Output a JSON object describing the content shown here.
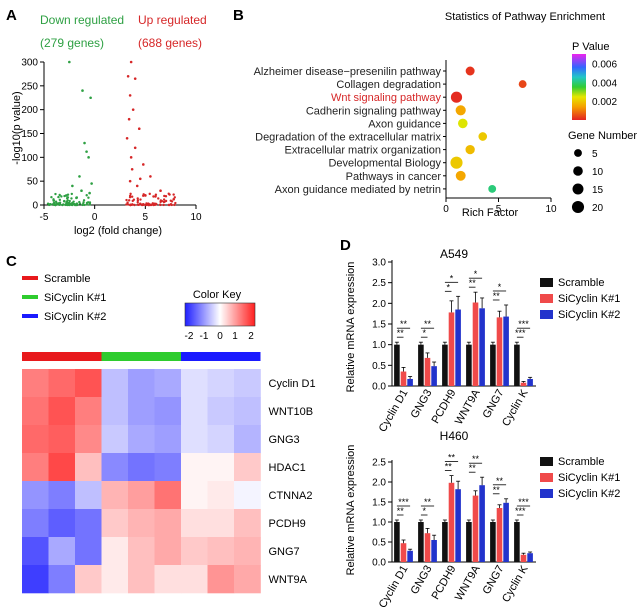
{
  "panels": {
    "A": {
      "letter": "A",
      "down_label": "Down regulated",
      "down_count": "(279 genes)",
      "up_label": "Up regulated",
      "up_count": "(688 genes)",
      "xlabel": "log2 (fold change)",
      "ylabel": "-log10(p value)",
      "colors": {
        "down": "#2ea043",
        "up": "#d62728"
      }
    },
    "B": {
      "letter": "B",
      "title": "Statistics of Pathway Enrichment",
      "xlabel": "Rich Factor",
      "pvalue_title": "P Value",
      "gene_title": "Gene Number",
      "highlight_color": "#d62728"
    },
    "C": {
      "letter": "C",
      "legend": [
        "Scramble",
        "SiCyclin K#1",
        "SiCyclin K#2"
      ],
      "legend_colors": [
        "#e8191c",
        "#2ecc2e",
        "#1a1aff"
      ],
      "colorkey_title": "Color Key",
      "colorkey_ticks": [
        "-2",
        "-1",
        "0",
        "1",
        "2"
      ]
    },
    "D": {
      "letter": "D",
      "legend": [
        "Scramble",
        "SiCyclin K#1",
        "SiCyclin K#2"
      ],
      "legend_colors": [
        "#111111",
        "#f04a4a",
        "#2233cc"
      ],
      "ylabel": "Relative mRNA expression"
    }
  },
  "chart_data": [
    {
      "id": "volcano",
      "type": "scatter",
      "title": "",
      "xlabel": "log2 (fold change)",
      "ylabel": "-log10(p value)",
      "xlim": [
        -5,
        10
      ],
      "ylim": [
        0,
        300
      ],
      "xticks": [
        "-5",
        "0",
        "5",
        "10"
      ],
      "yticks": [
        "0",
        "50",
        "100",
        "150",
        "200",
        "250",
        "300"
      ],
      "series": [
        {
          "name": "Down regulated",
          "color": "#2ea043",
          "points": [
            [
              -2.5,
              300
            ],
            [
              -1.2,
              240
            ],
            [
              -0.4,
              225
            ],
            [
              -1.0,
              130
            ],
            [
              -0.8,
              112
            ],
            [
              -0.6,
              100
            ],
            [
              -1.5,
              60
            ],
            [
              -2.2,
              40
            ],
            [
              -0.5,
              25
            ],
            [
              -1.8,
              15
            ],
            [
              -3.0,
              8
            ],
            [
              -4.0,
              4
            ],
            [
              -0.3,
              45
            ],
            [
              -2.8,
              20
            ],
            [
              -1.3,
              30
            ]
          ]
        },
        {
          "name": "Up regulated",
          "color": "#d62728",
          "points": [
            [
              3.6,
              300
            ],
            [
              3.3,
              270
            ],
            [
              4.0,
              265
            ],
            [
              3.5,
              230
            ],
            [
              3.8,
              200
            ],
            [
              3.4,
              180
            ],
            [
              4.4,
              160
            ],
            [
              3.2,
              140
            ],
            [
              4.0,
              120
            ],
            [
              3.6,
              100
            ],
            [
              4.8,
              85
            ],
            [
              5.5,
              60
            ],
            [
              3.5,
              50
            ],
            [
              6.5,
              30
            ],
            [
              4.2,
              40
            ],
            [
              7.8,
              12
            ],
            [
              5.0,
              20
            ],
            [
              3.7,
              75
            ],
            [
              4.5,
              55
            ],
            [
              6.0,
              18
            ]
          ]
        }
      ]
    },
    {
      "id": "enrichment",
      "type": "scatter",
      "title": "Statistics of Pathway Enrichment",
      "xlabel": "Rich Factor",
      "xlim": [
        0,
        10
      ],
      "xticks": [
        "0",
        "5",
        "10"
      ],
      "categories": [
        "Alzheimer disease−presenilin pathway",
        "Collagen degradation",
        "Wnt signaling pathway",
        "Cadherin signaling pathway",
        "Axon guidance",
        "Degradation of the extracellular matrix",
        "Extracellular matrix organization",
        "Developmental Biology",
        "Pathways in cancer",
        "Axon guidance mediated by netrin"
      ],
      "highlight": "Wnt signaling pathway",
      "rich_factor": [
        2.3,
        7.3,
        1.0,
        1.4,
        1.6,
        3.5,
        2.3,
        1.0,
        1.4,
        4.4
      ],
      "gene_number": [
        8,
        5,
        16,
        12,
        10,
        7,
        9,
        20,
        11,
        5
      ],
      "p_value": [
        0.0002,
        0.0004,
        0.0001,
        0.0015,
        0.0025,
        0.002,
        0.0018,
        0.002,
        0.0015,
        0.004
      ],
      "pvalue_ticks": [
        "0.006",
        "0.004",
        "0.002"
      ],
      "gene_ticks": [
        "5",
        "10",
        "15",
        "20"
      ]
    },
    {
      "id": "heatmap",
      "type": "heatmap",
      "rows": [
        "Cyclin D1",
        "WNT10B",
        "GNG3",
        "HDAC1",
        "CTNNA2",
        "PCDH9",
        "GNG7",
        "WNT9A"
      ],
      "groups": [
        "Scramble",
        "SiCyclin K#1",
        "SiCyclin K#2"
      ],
      "values": [
        [
          1.2,
          1.4,
          1.6,
          -0.6,
          -0.9,
          -0.8,
          -0.3,
          -0.4,
          -0.5
        ],
        [
          1.3,
          1.6,
          1.2,
          -0.6,
          -0.9,
          -1.0,
          -0.3,
          -0.5,
          -0.6
        ],
        [
          1.4,
          1.5,
          1.1,
          -0.5,
          -0.8,
          -0.9,
          -0.3,
          -0.4,
          -0.7
        ],
        [
          1.2,
          1.7,
          0.6,
          -1.1,
          -1.3,
          -1.2,
          0.1,
          0.1,
          0.5
        ],
        [
          -1.0,
          -1.2,
          -0.6,
          0.7,
          0.9,
          1.3,
          0.1,
          0.2,
          -0.1
        ],
        [
          -1.2,
          -1.5,
          -1.3,
          0.5,
          0.7,
          0.8,
          0.3,
          0.3,
          0.6
        ],
        [
          -1.6,
          -0.8,
          -1.3,
          0.2,
          0.6,
          0.8,
          0.5,
          0.6,
          0.7
        ],
        [
          -1.8,
          -1.2,
          0.5,
          0.2,
          0.6,
          0.3,
          0.3,
          1.0,
          0.8
        ]
      ]
    },
    {
      "id": "qpcr_a549",
      "type": "bar",
      "title": "A549",
      "ylabel": "Relative mRNA expression",
      "ylim": [
        0,
        3.0
      ],
      "yticks": [
        "0.0",
        "0.5",
        "1.0",
        "1.5",
        "2.0",
        "2.5",
        "3.0"
      ],
      "categories": [
        "Cyclin D1",
        "GNG3",
        "PCDH9",
        "WNT9A",
        "GNG7",
        "Cyclin K"
      ],
      "series": [
        {
          "name": "Scramble",
          "values": [
            1.0,
            1.0,
            1.0,
            1.0,
            1.0,
            1.0
          ],
          "errors": [
            0.06,
            0.06,
            0.06,
            0.06,
            0.06,
            0.06
          ]
        },
        {
          "name": "SiCyclin K#1",
          "values": [
            0.35,
            0.68,
            1.78,
            2.02,
            1.66,
            0.08
          ],
          "errors": [
            0.1,
            0.12,
            0.28,
            0.25,
            0.15,
            0.03
          ]
        },
        {
          "name": "SiCyclin K#2",
          "values": [
            0.17,
            0.48,
            1.85,
            1.88,
            1.68,
            0.17
          ],
          "errors": [
            0.06,
            0.1,
            0.32,
            0.25,
            0.28,
            0.04
          ]
        }
      ],
      "significance": [
        [
          "**",
          "**"
        ],
        [
          "*",
          "**"
        ],
        [
          "*",
          "*"
        ],
        [
          "**",
          "*"
        ],
        [
          "**",
          "*"
        ],
        [
          "***",
          "***"
        ]
      ]
    },
    {
      "id": "qpcr_h460",
      "type": "bar",
      "title": "H460",
      "ylabel": "Relative mRNA expression",
      "ylim": [
        0,
        2.5
      ],
      "yticks": [
        "0.0",
        "0.5",
        "1.0",
        "1.5",
        "2.0",
        "2.5"
      ],
      "categories": [
        "Cyclin D1",
        "GNG3",
        "PCDH9",
        "WNT9A",
        "GNG7",
        "Cyclin K"
      ],
      "series": [
        {
          "name": "Scramble",
          "values": [
            1.0,
            1.0,
            1.0,
            1.0,
            1.0,
            1.0
          ],
          "errors": [
            0.05,
            0.05,
            0.05,
            0.05,
            0.05,
            0.05
          ]
        },
        {
          "name": "SiCyclin K#1",
          "values": [
            0.47,
            0.72,
            1.98,
            1.66,
            1.35,
            0.18
          ],
          "errors": [
            0.08,
            0.12,
            0.18,
            0.12,
            0.08,
            0.04
          ]
        },
        {
          "name": "SiCyclin K#2",
          "values": [
            0.28,
            0.55,
            1.82,
            1.92,
            1.48,
            0.22
          ],
          "errors": [
            0.04,
            0.12,
            0.2,
            0.2,
            0.1,
            0.03
          ]
        }
      ],
      "significance": [
        [
          "**",
          "***"
        ],
        [
          "*",
          "**"
        ],
        [
          "**",
          "**"
        ],
        [
          "**",
          "**"
        ],
        [
          "**",
          "**"
        ],
        [
          "***",
          "***"
        ]
      ]
    }
  ]
}
